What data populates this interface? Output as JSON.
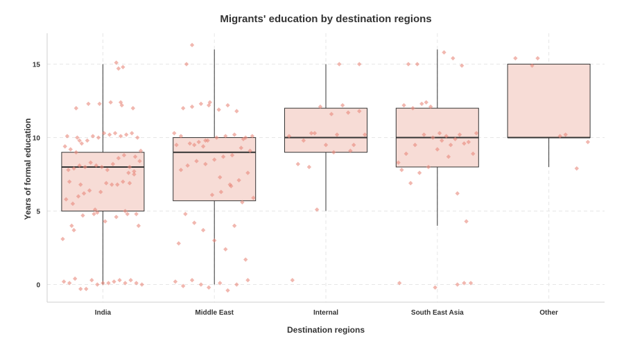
{
  "chart_data": {
    "type": "boxplot",
    "title": "Migrants' education by destination regions",
    "xlabel": "Destination regions",
    "ylabel": "Years of formal education",
    "ylim": [
      -1.2,
      17.1
    ],
    "yticks": [
      0,
      5,
      10,
      15
    ],
    "grid": true,
    "categories": [
      "India",
      "Middle East",
      "Internal",
      "South East Asia",
      "Other"
    ],
    "colors": {
      "box_fill": "#f7dcd6",
      "box_stroke": "#333333",
      "point": "#e8877a",
      "grid": "#e6e6e6",
      "text": "#333333"
    },
    "boxes": [
      {
        "category": "India",
        "whisker_low": 0,
        "q1": 5,
        "median": 8,
        "q3": 9,
        "whisker_high": 15
      },
      {
        "category": "Middle East",
        "whisker_low": 0,
        "q1": 5.7,
        "median": 9,
        "q3": 10,
        "whisker_high": 16
      },
      {
        "category": "Internal",
        "whisker_low": 5,
        "q1": 9,
        "median": 10,
        "q3": 12,
        "whisker_high": 15
      },
      {
        "category": "South East Asia",
        "whisker_low": 4,
        "q1": 8,
        "median": 10,
        "q3": 12,
        "whisker_high": 16
      },
      {
        "category": "Other",
        "whisker_low": 8,
        "q1": 10,
        "median": 10,
        "q3": 15,
        "whisker_high": 15
      }
    ],
    "points": [
      {
        "category": "India",
        "x": [
          -0.35,
          -0.3,
          -0.25,
          -0.2,
          -0.15,
          -0.1,
          -0.05,
          0.0,
          0.05,
          0.1,
          0.15,
          0.2,
          0.25,
          0.3,
          0.35,
          -0.33,
          -0.27,
          -0.22,
          -0.17,
          -0.12,
          -0.07,
          -0.02,
          0.03,
          0.08,
          0.13,
          0.18,
          0.23,
          0.28,
          0.33,
          -0.31,
          -0.26,
          -0.21,
          -0.16,
          -0.11,
          -0.06,
          -0.01,
          0.04,
          0.09,
          0.14,
          0.19,
          0.24,
          0.29,
          0.34,
          -0.34,
          -0.29,
          -0.24,
          -0.19,
          -0.14,
          -0.09,
          -0.04,
          0.01,
          0.06,
          0.11,
          0.16,
          0.21,
          0.26,
          0.31,
          -0.32,
          -0.23,
          -0.13,
          -0.03,
          0.07,
          0.17,
          0.27,
          -0.28,
          -0.18,
          -0.08,
          0.02,
          0.12,
          0.22,
          0.32,
          -0.36,
          -0.26,
          0.2,
          0.3,
          -0.24,
          -0.2,
          0.24,
          0.28,
          -0.3,
          0.18,
          0.12,
          0.14,
          0.16,
          -0.21,
          -0.05
        ],
        "y": [
          0.2,
          0.1,
          0.4,
          -0.3,
          -0.3,
          0.3,
          0.0,
          0.1,
          0.1,
          0.2,
          0.3,
          0.1,
          0.3,
          0.1,
          0.0,
          5.8,
          5.5,
          6.0,
          6.2,
          6.4,
          5.1,
          6.3,
          6.9,
          6.8,
          6.8,
          7.0,
          7.6,
          7.5,
          8.4,
          7.8,
          7.9,
          8.1,
          8.0,
          8.3,
          8.1,
          8.0,
          7.8,
          8.2,
          8.6,
          8.8,
          8.0,
          8.7,
          9.1,
          9.4,
          9.2,
          9.0,
          9.6,
          9.8,
          10.1,
          10.0,
          10.3,
          10.2,
          10.3,
          10.1,
          10.2,
          10.3,
          10.0,
          10.1,
          10.0,
          12.3,
          12.3,
          12.4,
          12.2,
          12.0,
          4.0,
          4.7,
          4.8,
          4.3,
          4.6,
          4.8,
          4.0,
          3.1,
          3.7,
          5.0,
          4.8,
          12.0,
          6.8,
          6.9,
          7.7,
          7.0,
          14.8,
          15.1,
          14.7,
          12.4,
          9.8,
          4.9
        ]
      },
      {
        "category": "Middle East",
        "x": [
          -0.35,
          -0.28,
          -0.2,
          -0.12,
          -0.05,
          0.05,
          0.12,
          0.2,
          0.3,
          -0.32,
          -0.26,
          -0.18,
          -0.1,
          -0.02,
          0.06,
          0.14,
          0.22,
          0.3,
          -0.3,
          -0.24,
          -0.16,
          -0.08,
          0.0,
          0.08,
          0.16,
          0.24,
          0.32,
          -0.34,
          -0.22,
          -0.14,
          -0.06,
          0.02,
          0.1,
          0.18,
          0.26,
          0.34,
          -0.28,
          -0.2,
          -0.12,
          -0.04,
          0.04,
          0.12,
          0.2,
          0.28,
          -0.36,
          -0.3,
          -0.18,
          -0.1,
          0.05,
          0.15,
          0.25,
          0.35,
          -0.25,
          -0.05,
          0.0,
          0.1,
          0.18,
          0.28,
          -0.2,
          -0.08
        ],
        "y": [
          0.2,
          -0.1,
          0.3,
          0.0,
          -0.2,
          0.1,
          -0.4,
          0.0,
          0.3,
          2.8,
          4.8,
          4.2,
          3.7,
          6.1,
          6.3,
          6.8,
          7.1,
          7.6,
          7.8,
          8.1,
          8.4,
          8.2,
          8.5,
          8.7,
          8.8,
          9.3,
          9.1,
          9.5,
          9.6,
          9.7,
          9.8,
          10.0,
          10.1,
          10.2,
          9.9,
          10.1,
          12.0,
          12.1,
          12.3,
          12.4,
          11.9,
          12.2,
          11.8,
          10.0,
          10.3,
          10.1,
          9.5,
          9.4,
          7.3,
          6.7,
          5.6,
          5.9,
          15.0,
          12.2,
          3.0,
          2.4,
          4.0,
          1.7,
          16.3,
          9.8
        ]
      },
      {
        "category": "Internal",
        "x": [
          -0.3,
          -0.2,
          -0.1,
          0.0,
          0.1,
          0.2,
          0.3,
          -0.25,
          -0.15,
          -0.05,
          0.05,
          0.15,
          0.25,
          -0.33,
          -0.13,
          0.07,
          0.22,
          0.35,
          -0.08,
          0.12,
          0.3
        ],
        "y": [
          0.3,
          9.8,
          10.3,
          9.5,
          10.2,
          11.7,
          11.8,
          8.2,
          8.0,
          12.1,
          11.6,
          12.2,
          9.5,
          10.1,
          10.3,
          9.0,
          9.1,
          10.2,
          5.1,
          15.0,
          15.0
        ]
      },
      {
        "category": "South East Asia",
        "x": [
          -0.35,
          -0.28,
          -0.2,
          -0.12,
          -0.04,
          0.04,
          0.12,
          0.2,
          0.28,
          0.35,
          -0.32,
          -0.24,
          -0.16,
          -0.08,
          0.0,
          0.08,
          0.16,
          0.24,
          0.32,
          -0.3,
          -0.22,
          -0.14,
          -0.06,
          0.02,
          0.1,
          0.18,
          0.26,
          -0.26,
          -0.18,
          -0.1,
          0.06,
          0.14,
          0.22,
          0.3,
          -0.34,
          -0.02,
          0.18,
          0.24
        ],
        "y": [
          8.3,
          8.9,
          9.5,
          10.2,
          10.0,
          9.8,
          9.5,
          10.2,
          9.7,
          10.3,
          7.8,
          6.9,
          7.6,
          8.0,
          9.2,
          10.1,
          9.9,
          9.6,
          8.9,
          12.2,
          12.0,
          12.3,
          12.1,
          10.3,
          8.7,
          6.2,
          4.3,
          15.0,
          15.0,
          12.4,
          15.8,
          15.4,
          14.9,
          0.1,
          0.1,
          -0.2,
          0.0,
          0.1
        ]
      },
      {
        "category": "Other",
        "x": [
          -0.3,
          -0.1,
          -0.15,
          0.1,
          0.15,
          0.25,
          0.35
        ],
        "y": [
          15.4,
          15.4,
          14.9,
          10.1,
          10.2,
          7.9,
          9.7
        ]
      }
    ]
  }
}
